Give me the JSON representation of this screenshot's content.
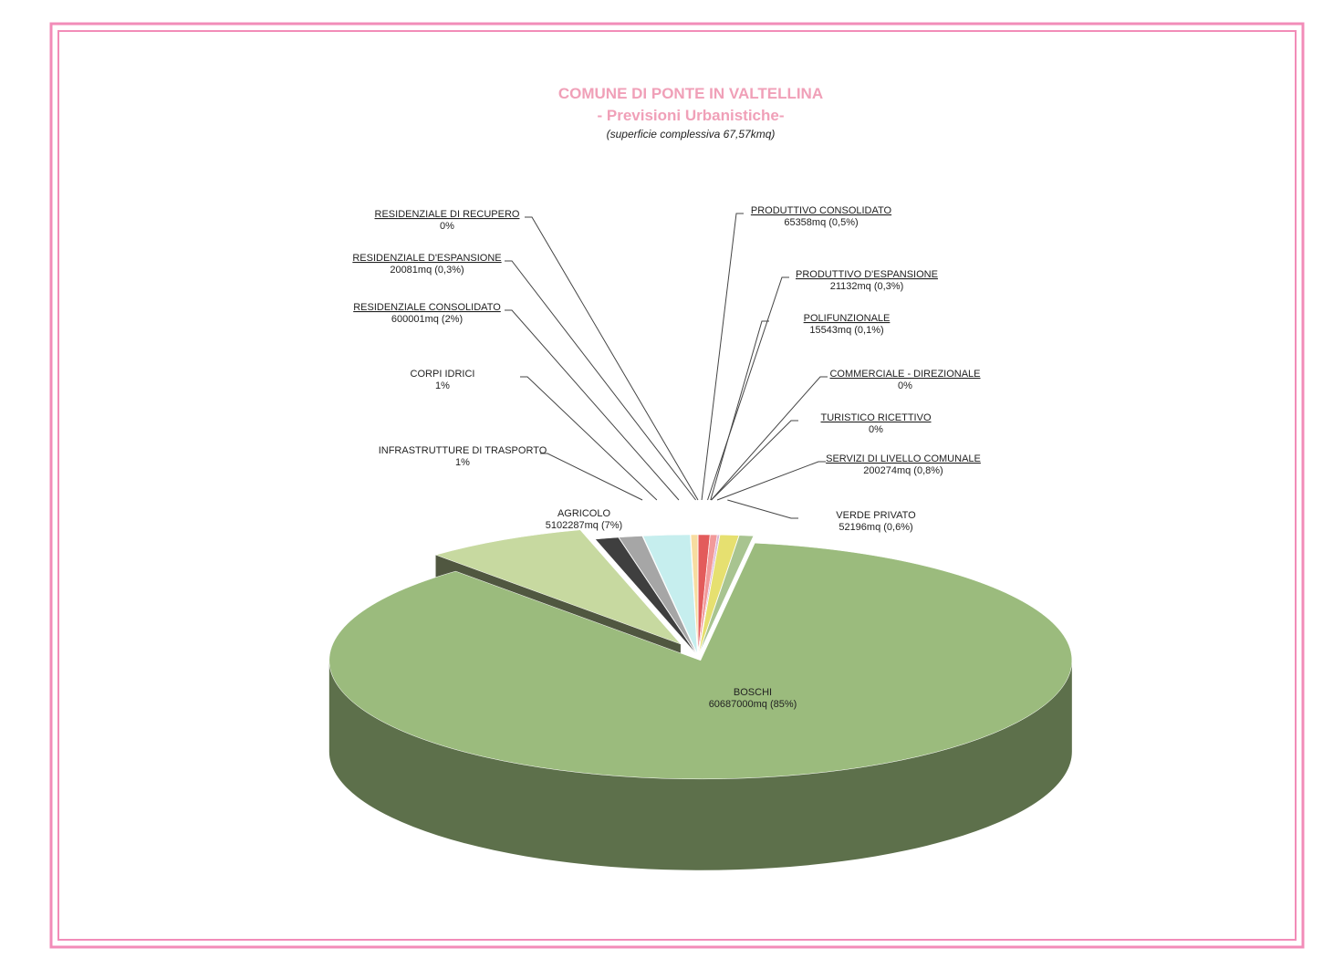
{
  "chart_data": {
    "type": "pie",
    "title": "COMUNE DI PONTE IN VALTELLINA",
    "subtitle": "- Previsioni Urbanistiche-",
    "note": "(superficie complessiva 67,57kmq)",
    "categories": [
      "PRODUTTIVO CONSOLIDATO",
      "PRODUTTIVO D'ESPANSIONE",
      "POLIFUNZIONALE",
      "COMMERCIALE - DIREZIONALE",
      "TURISTICO RICETTIVO",
      "SERVIZI DI LIVELLO COMUNALE",
      "VERDE PRIVATO",
      "BOSCHI",
      "AGRICOLO",
      "INFRASTRUTTURE DI TRASPORTO",
      "CORPI IDRICI",
      "RESIDENZIALE CONSOLIDATO",
      "RESIDENZIALE D'ESPANSIONE",
      "RESIDENZIALE DI RECUPERO"
    ],
    "values": [
      0.5,
      0.3,
      0.1,
      0,
      0,
      0.8,
      0.6,
      85,
      7,
      1,
      1,
      2,
      0.3,
      0
    ],
    "value_labels": [
      "65358mq (0,5%)",
      "21132mq (0,3%)",
      "15543mq (0,1%)",
      "0%",
      "0%",
      "200274mq (0,8%)",
      "52196mq (0,6%)",
      "60687000mq (85%)",
      "5102287mq (7%)",
      "1%",
      "1%",
      "600001mq (2%)",
      "20081mq (0,3%)",
      "0%"
    ],
    "colors": [
      "#e35b5b",
      "#f29a9a",
      "#d9b8d9",
      "#c48ac4",
      "#f5b041",
      "#e6e070",
      "#a8c490",
      "#9bbb7d",
      "#c7d9a0",
      "#3f3f3f",
      "#a6a6a6",
      "#c6eeee",
      "#f7dca0",
      "#f4b6b6"
    ]
  }
}
